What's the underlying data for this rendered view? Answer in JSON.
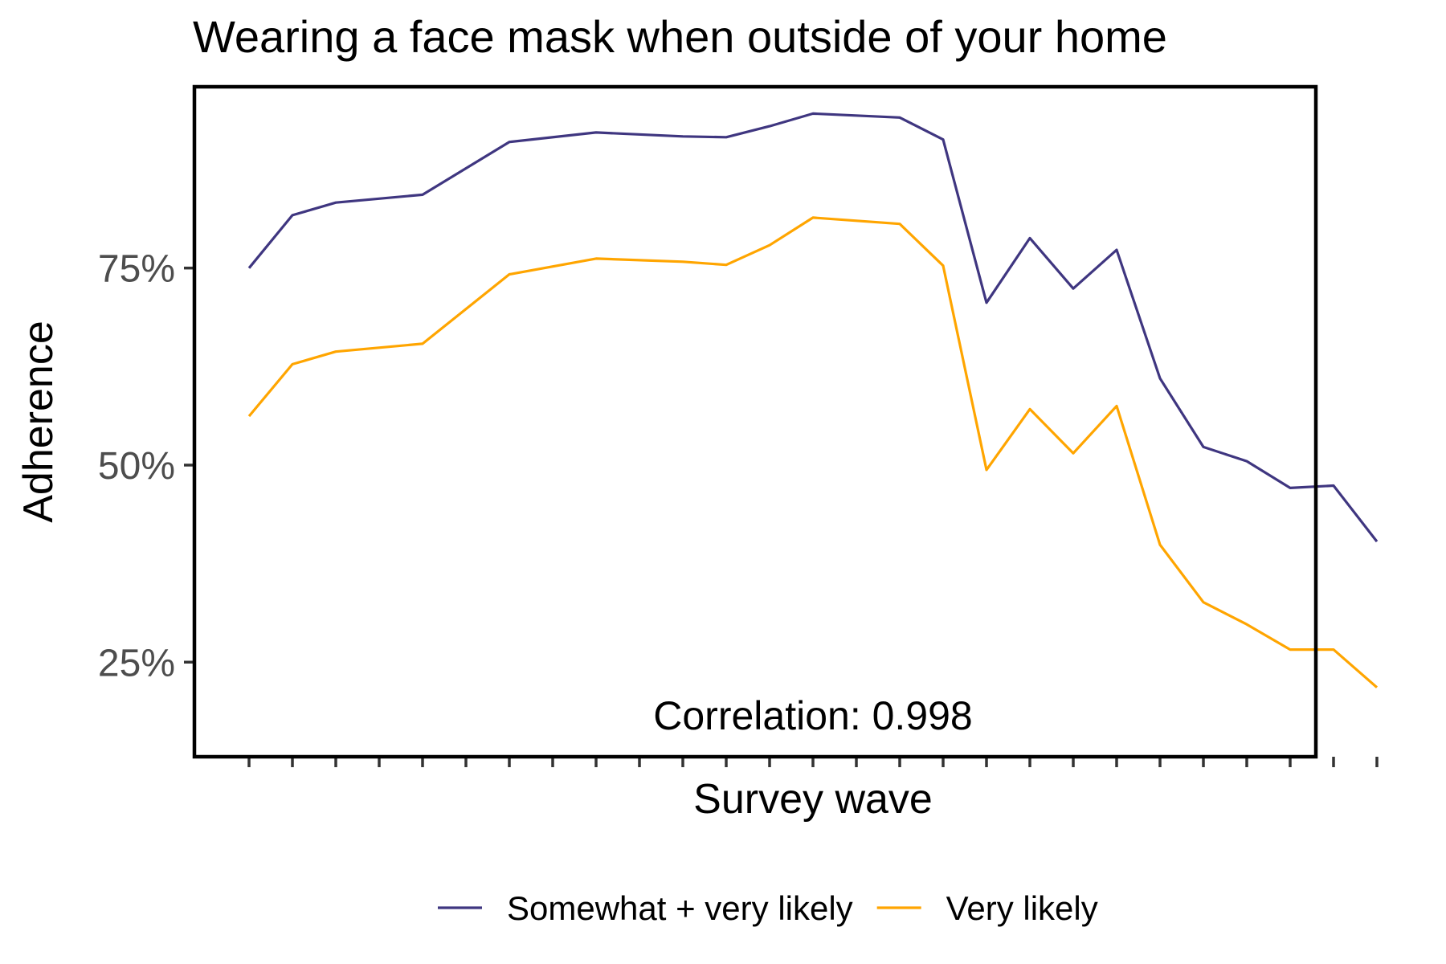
{
  "chart_data": {
    "type": "line",
    "title": "Wearing a face mask when outside of your home",
    "xlabel": "Survey wave",
    "ylabel": "Adherence",
    "x": [
      1,
      2,
      3,
      4,
      5,
      6,
      7,
      8,
      9,
      10,
      11,
      12,
      13,
      14,
      15,
      16,
      17,
      18,
      19,
      20,
      21,
      22,
      23,
      24,
      25,
      26,
      27
    ],
    "x_tick_labels_shown": false,
    "ylim": [
      13,
      98
    ],
    "y_ticks": [
      25,
      50,
      75
    ],
    "y_tick_labels": [
      "25%",
      "50%",
      "75%"
    ],
    "series": [
      {
        "name": "Somewhat + very likely",
        "color": "#3f3680",
        "values": [
          75.0,
          81.7,
          83.3,
          null,
          84.3,
          null,
          91.0,
          null,
          92.2,
          null,
          91.7,
          91.6,
          93.0,
          94.6,
          null,
          94.1,
          91.3,
          70.6,
          78.8,
          72.4,
          77.3,
          61.0,
          52.3,
          50.5,
          47.1,
          47.4,
          40.3
        ]
      },
      {
        "name": "Very likely",
        "color": "#ffa500",
        "values": [
          56.2,
          62.8,
          64.4,
          null,
          65.4,
          null,
          74.2,
          null,
          76.2,
          null,
          75.8,
          75.4,
          77.9,
          81.4,
          null,
          80.6,
          75.3,
          49.4,
          57.1,
          51.5,
          57.5,
          39.9,
          32.6,
          29.8,
          26.6,
          26.6,
          21.8
        ]
      }
    ],
    "annotation": "Correlation: 0.998",
    "legend_position": "bottom",
    "grid": false
  }
}
